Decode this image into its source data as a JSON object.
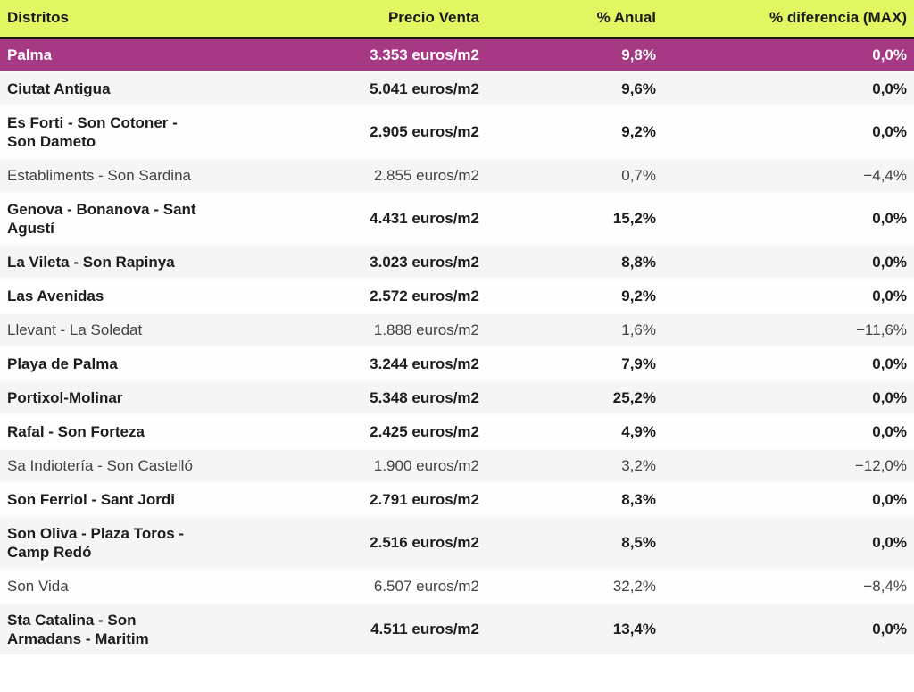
{
  "chart_data": {
    "type": "table",
    "columns": [
      "Distritos",
      "Precio Venta",
      "% Anual",
      "% diferencia (MAX)"
    ],
    "rows": [
      {
        "district": "Palma",
        "price": "3.353 euros/m2",
        "annual": "9,8%",
        "diff": "0,0%",
        "price_eur_m2": 3353,
        "annual_pct": 9.8,
        "diff_pct": 0.0,
        "highlight": true,
        "bold": true
      },
      {
        "district": "Ciutat Antigua",
        "price": "5.041 euros/m2",
        "annual": "9,6%",
        "diff": "0,0%",
        "price_eur_m2": 5041,
        "annual_pct": 9.6,
        "diff_pct": 0.0,
        "highlight": false,
        "bold": true
      },
      {
        "district": "Es Forti - Son Cotoner - Son Dameto",
        "price": "2.905 euros/m2",
        "annual": "9,2%",
        "diff": "0,0%",
        "price_eur_m2": 2905,
        "annual_pct": 9.2,
        "diff_pct": 0.0,
        "highlight": false,
        "bold": true
      },
      {
        "district": "Establiments - Son Sardina",
        "price": "2.855 euros/m2",
        "annual": "0,7%",
        "diff": "−4,4%",
        "price_eur_m2": 2855,
        "annual_pct": 0.7,
        "diff_pct": -4.4,
        "highlight": false,
        "bold": false
      },
      {
        "district": "Genova - Bonanova - Sant Agustí",
        "price": "4.431 euros/m2",
        "annual": "15,2%",
        "diff": "0,0%",
        "price_eur_m2": 4431,
        "annual_pct": 15.2,
        "diff_pct": 0.0,
        "highlight": false,
        "bold": true
      },
      {
        "district": "La Vileta - Son Rapinya",
        "price": "3.023 euros/m2",
        "annual": "8,8%",
        "diff": "0,0%",
        "price_eur_m2": 3023,
        "annual_pct": 8.8,
        "diff_pct": 0.0,
        "highlight": false,
        "bold": true
      },
      {
        "district": "Las Avenidas",
        "price": "2.572 euros/m2",
        "annual": "9,2%",
        "diff": "0,0%",
        "price_eur_m2": 2572,
        "annual_pct": 9.2,
        "diff_pct": 0.0,
        "highlight": false,
        "bold": true
      },
      {
        "district": "Llevant - La Soledat",
        "price": "1.888 euros/m2",
        "annual": "1,6%",
        "diff": "−11,6%",
        "price_eur_m2": 1888,
        "annual_pct": 1.6,
        "diff_pct": -11.6,
        "highlight": false,
        "bold": false
      },
      {
        "district": "Playa de Palma",
        "price": "3.244 euros/m2",
        "annual": "7,9%",
        "diff": "0,0%",
        "price_eur_m2": 3244,
        "annual_pct": 7.9,
        "diff_pct": 0.0,
        "highlight": false,
        "bold": true
      },
      {
        "district": "Portixol-Molinar",
        "price": "5.348 euros/m2",
        "annual": "25,2%",
        "diff": "0,0%",
        "price_eur_m2": 5348,
        "annual_pct": 25.2,
        "diff_pct": 0.0,
        "highlight": false,
        "bold": true
      },
      {
        "district": "Rafal - Son Forteza",
        "price": "2.425 euros/m2",
        "annual": "4,9%",
        "diff": "0,0%",
        "price_eur_m2": 2425,
        "annual_pct": 4.9,
        "diff_pct": 0.0,
        "highlight": false,
        "bold": true
      },
      {
        "district": "Sa Indiotería - Son Castelló",
        "price": "1.900 euros/m2",
        "annual": "3,2%",
        "diff": "−12,0%",
        "price_eur_m2": 1900,
        "annual_pct": 3.2,
        "diff_pct": -12.0,
        "highlight": false,
        "bold": false
      },
      {
        "district": "Son Ferriol - Sant Jordi",
        "price": "2.791 euros/m2",
        "annual": "8,3%",
        "diff": "0,0%",
        "price_eur_m2": 2791,
        "annual_pct": 8.3,
        "diff_pct": 0.0,
        "highlight": false,
        "bold": true
      },
      {
        "district": "Son Oliva - Plaza Toros - Camp Redó",
        "price": "2.516 euros/m2",
        "annual": "8,5%",
        "diff": "0,0%",
        "price_eur_m2": 2516,
        "annual_pct": 8.5,
        "diff_pct": 0.0,
        "highlight": false,
        "bold": true
      },
      {
        "district": "Son Vida",
        "price": "6.507 euros/m2",
        "annual": "32,2%",
        "diff": "−8,4%",
        "price_eur_m2": 6507,
        "annual_pct": 32.2,
        "diff_pct": -8.4,
        "highlight": false,
        "bold": false
      },
      {
        "district": "Sta Catalina - Son Armadans - Maritim",
        "price": "4.511 euros/m2",
        "annual": "13,4%",
        "diff": "0,0%",
        "price_eur_m2": 4511,
        "annual_pct": 13.4,
        "diff_pct": 0.0,
        "highlight": false,
        "bold": true
      }
    ],
    "layout": {
      "highlighted_row": "Palma",
      "muted_rows_meaning": "rows with negative % diferencia shown in regular weight",
      "grid": "horizontal light separators, zebra striping"
    }
  },
  "colors": {
    "header_bg": "#e2f661",
    "highlight_bg": "#a73883",
    "stripe_bg": "#f4f5f4",
    "row_bg": "#fefefe",
    "bold_text": "#1d1d1d",
    "muted_text": "#424242",
    "header_border": "#1a1a1a"
  }
}
